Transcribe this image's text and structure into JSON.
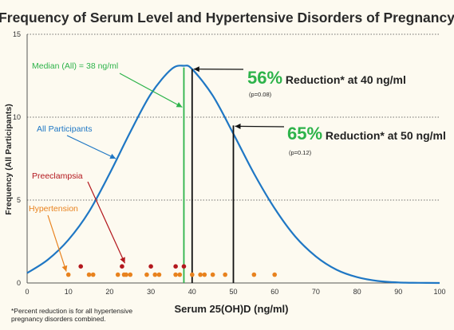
{
  "colors": {
    "curve": "#1f77c4",
    "median": "#2db34a",
    "preeclampsia": "#b3171d",
    "hypertension": "#e8821e",
    "arrow_black": "#111111",
    "grid": "#444444"
  },
  "chart_data": {
    "type": "line",
    "title": "Frequency of Serum Level and Hypertensive Disorders of Pregnancy",
    "xlabel": "Serum 25(OH)D (ng/ml)",
    "ylabel": "Frequency (All Participants)",
    "xlim": [
      0,
      100
    ],
    "ylim": [
      0,
      15
    ],
    "x_ticks": [
      0,
      10,
      20,
      30,
      40,
      50,
      60,
      70,
      80,
      90,
      100
    ],
    "y_ticks": [
      0,
      5,
      10,
      15
    ],
    "grid": "horizontal dotted",
    "series": [
      {
        "name": "All Participants",
        "kind": "curve",
        "x": [
          0,
          5,
          10,
          15,
          20,
          25,
          30,
          35,
          38,
          40,
          45,
          50,
          55,
          60,
          65,
          70,
          75,
          80,
          85,
          90,
          95,
          100
        ],
        "y": [
          0.6,
          1.4,
          2.6,
          4.3,
          6.6,
          9.1,
          11.4,
          12.9,
          13.1,
          12.9,
          11.3,
          9.0,
          6.6,
          4.5,
          2.8,
          1.6,
          0.8,
          0.35,
          0.12,
          0.03,
          0.01,
          0.0
        ]
      },
      {
        "name": "Preeclampsia",
        "kind": "points",
        "x": [
          13,
          23,
          30,
          36,
          38
        ],
        "y": [
          1.0,
          1.0,
          1.0,
          1.0,
          1.0
        ]
      },
      {
        "name": "Hypertension",
        "kind": "points",
        "x": [
          10,
          15,
          16,
          22,
          23.5,
          24,
          25,
          29,
          31,
          32,
          36,
          37,
          40,
          42,
          43,
          45,
          48,
          55,
          60
        ],
        "y": [
          0.5,
          0.5,
          0.5,
          0.5,
          0.5,
          0.5,
          0.5,
          0.5,
          0.5,
          0.5,
          0.5,
          0.5,
          0.5,
          0.5,
          0.5,
          0.5,
          0.5,
          0.5,
          0.5
        ]
      }
    ],
    "median": {
      "label": "Median (All) = 38 ng/ml",
      "x": 38
    },
    "reductions": [
      {
        "pct": "56%",
        "text": " Reduction* at 40 ng/ml",
        "p": "(p=0.08)",
        "x": 40,
        "y": 12.9
      },
      {
        "pct": "65%",
        "text": " Reduction* at 50 ng/ml",
        "p": "(p=0.12)",
        "x": 50,
        "y": 9.5
      }
    ],
    "labels": {
      "all": "All Participants",
      "preeclampsia": "Preeclampsia",
      "hypertension": "Hypertension"
    }
  },
  "footnote": "*Percent reduction is for all hypertensive pregnancy disorders combined."
}
